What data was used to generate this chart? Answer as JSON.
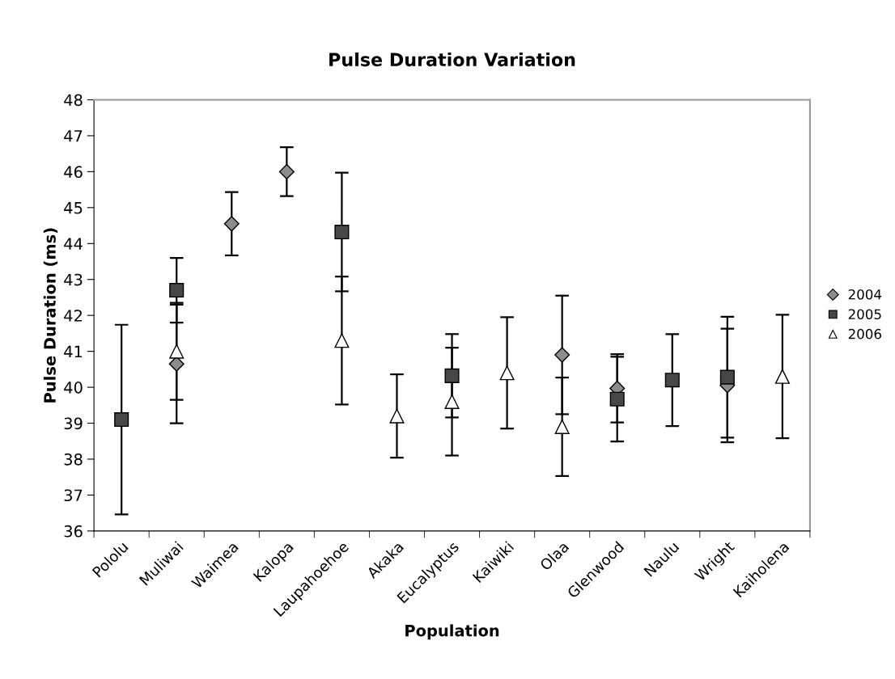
{
  "chart_data": {
    "type": "scatter",
    "title": "Pulse Duration Variation",
    "xlabel": "Population",
    "ylabel": "Pulse Duration (ms)",
    "categories": [
      "Pololu",
      "Muliwai",
      "Waimea",
      "Kalopa",
      "Laupahoehoe",
      "Akaka",
      "Eucalyptus",
      "Kaiwiki",
      "Olaa",
      "Glenwood",
      "Naulu",
      "Wright",
      "Kaiholena"
    ],
    "series": [
      {
        "name": "2004",
        "color": "#8c8c8c",
        "marker": "diamond",
        "values": [
          null,
          40.65,
          44.55,
          46.0,
          null,
          null,
          null,
          null,
          40.9,
          39.97,
          null,
          40.05,
          null
        ],
        "errors": [
          null,
          1.65,
          0.88,
          0.68,
          null,
          null,
          null,
          null,
          1.65,
          0.95,
          null,
          1.58,
          null
        ]
      },
      {
        "name": "2005",
        "color": "#474747",
        "marker": "square",
        "values": [
          39.1,
          42.7,
          null,
          null,
          44.32,
          null,
          40.32,
          null,
          null,
          39.67,
          40.2,
          40.28,
          null
        ],
        "errors": [
          2.64,
          0.9,
          null,
          null,
          1.65,
          null,
          1.16,
          null,
          null,
          1.18,
          1.28,
          1.68,
          null
        ]
      },
      {
        "name": "2006",
        "color": "#ffffff",
        "marker": "triangle",
        "values": [
          null,
          41.0,
          null,
          null,
          41.3,
          39.2,
          39.6,
          40.4,
          38.9,
          null,
          null,
          null,
          40.3
        ],
        "errors": [
          null,
          1.35,
          null,
          null,
          1.78,
          1.16,
          1.5,
          1.55,
          1.37,
          null,
          null,
          null,
          1.72
        ]
      }
    ],
    "ylim": [
      36,
      48
    ],
    "yticks": [
      36,
      37,
      38,
      39,
      40,
      41,
      42,
      43,
      44,
      45,
      46,
      47,
      48
    ],
    "grid": false,
    "legend": "right"
  }
}
